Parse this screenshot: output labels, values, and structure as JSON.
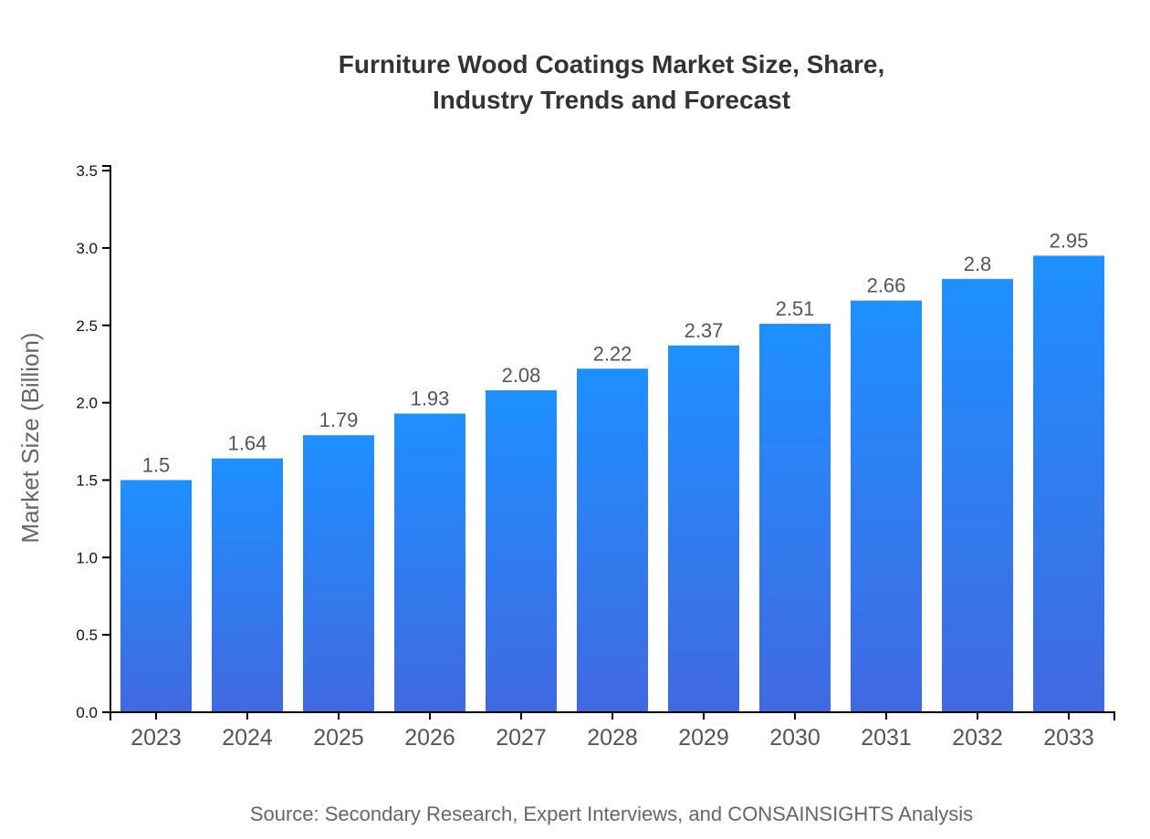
{
  "chart_data": {
    "type": "bar",
    "title_lines": [
      "Furniture Wood Coatings Market Size, Share,",
      "Industry Trends and Forecast"
    ],
    "categories": [
      "2023",
      "2024",
      "2025",
      "2026",
      "2027",
      "2028",
      "2029",
      "2030",
      "2031",
      "2032",
      "2033"
    ],
    "values": [
      1.5,
      1.64,
      1.79,
      1.93,
      2.08,
      2.22,
      2.37,
      2.51,
      2.66,
      2.8,
      2.95
    ],
    "data_labels": [
      "1.5",
      "1.64",
      "1.79",
      "1.93",
      "2.08",
      "2.22",
      "2.37",
      "2.51",
      "2.66",
      "2.8",
      "2.95"
    ],
    "xlabel": "",
    "ylabel": "Market Size (Billion)",
    "ylim": [
      0,
      3.53
    ],
    "yticks": [
      "0.0",
      "0.5",
      "1.0",
      "1.5",
      "2.0",
      "2.5",
      "3.0",
      "3.5"
    ],
    "grid": false,
    "legend": "none",
    "colors": {
      "bar_top": "#1e90ff",
      "bar_bottom": "#4169e1"
    },
    "source": "Source: Secondary Research, Expert Interviews, and CONSAINSIGHTS Analysis"
  }
}
